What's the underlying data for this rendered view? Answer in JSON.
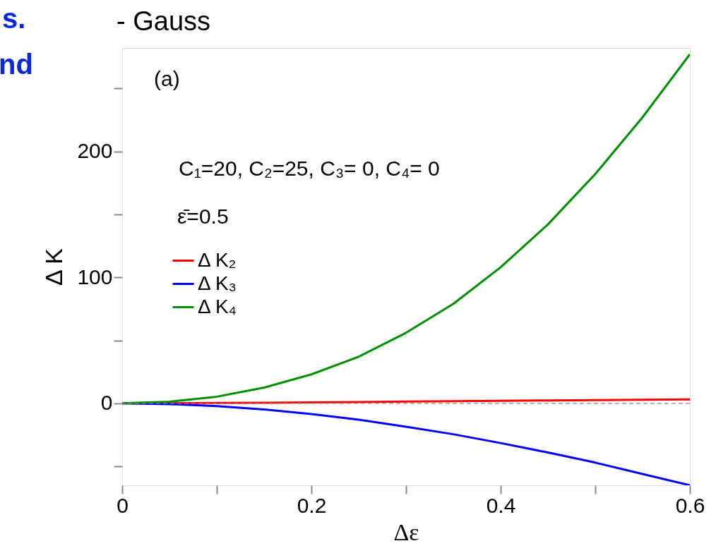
{
  "chart_data": {
    "type": "line",
    "title": "- Gauss",
    "xlabel": "Δε",
    "ylabel": "Δ K",
    "annotations": [
      "(a)",
      "C₁=20, C₂=25, C₃= 0, C₄= 0",
      "ε̄=0.5",
      "s.",
      "nd"
    ],
    "x": [
      0,
      0.05,
      0.1,
      0.15,
      0.2,
      0.25,
      0.3,
      0.35,
      0.4,
      0.45,
      0.5,
      0.55,
      0.6
    ],
    "series": [
      {
        "name": "Δ K₂",
        "color": "#ff0000",
        "values": [
          0,
          0.1,
          0.3,
          0.5,
          0.8,
          1.1,
          1.4,
          1.7,
          2.0,
          2.3,
          2.6,
          2.9,
          3.2
        ]
      },
      {
        "name": "Δ K₃",
        "color": "#0000ff",
        "values": [
          0,
          -0.6,
          -2.2,
          -4.8,
          -8.5,
          -13,
          -18.5,
          -24.5,
          -31.5,
          -39,
          -47,
          -56,
          -65
        ]
      },
      {
        "name": "Δ K₄",
        "color": "#008f00",
        "values": [
          0,
          1.3,
          5.3,
          12.5,
          23,
          37,
          56,
          79,
          108,
          142,
          182,
          227,
          277
        ]
      }
    ],
    "xlim": [
      0,
      0.6
    ],
    "ylim": [
      -65,
      282
    ],
    "xticks": [
      0,
      {
        "value": 0.1,
        "label": null
      },
      0.2,
      {
        "value": 0.3,
        "label": null
      },
      0.4,
      {
        "value": 0.5,
        "label": null
      },
      0.6
    ],
    "yticks": [
      {
        "value": -50,
        "label": null
      },
      0,
      {
        "value": 50,
        "label": null
      },
      100,
      {
        "value": 150,
        "label": null
      },
      200,
      {
        "value": 250,
        "label": null
      }
    ],
    "ref_lines": [
      {
        "axis": "y",
        "value": 0,
        "label": null,
        "color": "#888888",
        "line_style": "dashed"
      }
    ],
    "legend": "left",
    "grid": false,
    "marker": "none",
    "line_style": "solid"
  }
}
